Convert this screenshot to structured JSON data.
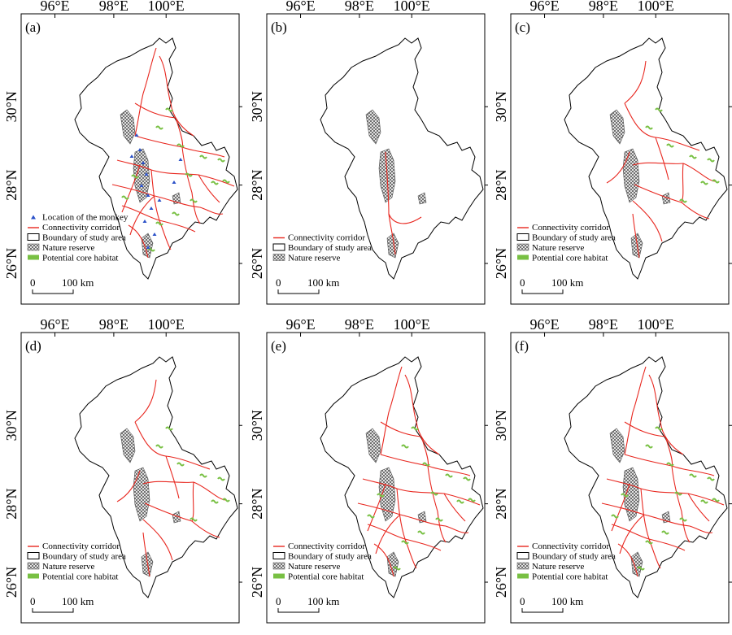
{
  "axis": {
    "lon_ticks": [
      "96°E",
      "98°E",
      "100°E"
    ],
    "lat_ticks": [
      "30°N",
      "28°N",
      "26°N"
    ]
  },
  "colors": {
    "corridor": "#e8271f",
    "habitat": "#78c043",
    "monkey": "#2a50c8",
    "boundary": "#000000"
  },
  "legend_labels": {
    "monkey": "Location of the monkey",
    "corridor": "Connectivity corridor",
    "boundary": "Boundary of study area",
    "reserve": "Nature reserve",
    "habitat": "Potential core habitat"
  },
  "scale_bar": {
    "zero": "0",
    "distance": "100 km"
  },
  "panels": [
    {
      "label": "(a)",
      "corridors": "dense",
      "habitat": true,
      "monkey": true
    },
    {
      "label": "(b)",
      "corridors": "sparse",
      "habitat": false,
      "monkey": false
    },
    {
      "label": "(c)",
      "corridors": "medium",
      "habitat": true,
      "monkey": false
    },
    {
      "label": "(d)",
      "corridors": "medium",
      "habitat": true,
      "monkey": false
    },
    {
      "label": "(e)",
      "corridors": "dense",
      "habitat": true,
      "monkey": false
    },
    {
      "label": "(f)",
      "corridors": "dense",
      "habitat": true,
      "monkey": false
    }
  ]
}
